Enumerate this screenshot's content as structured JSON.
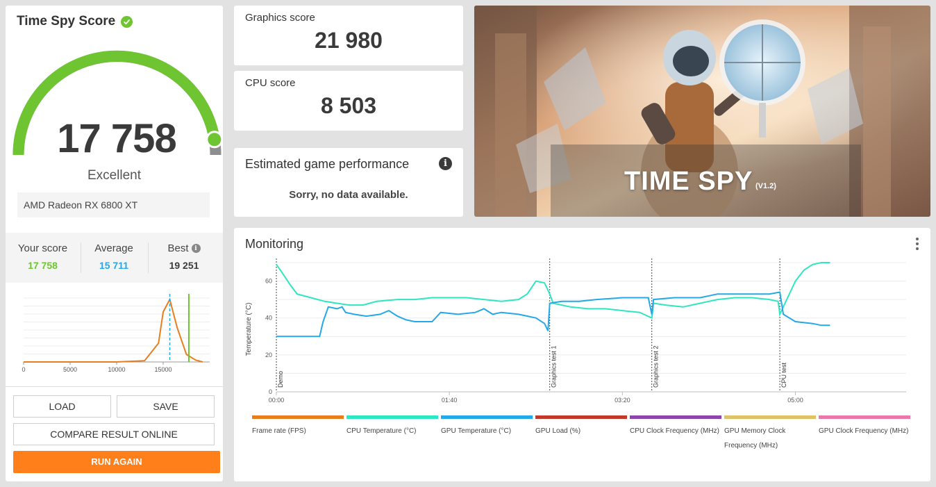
{
  "score_card": {
    "title": "Time Spy Score",
    "score": "17 758",
    "rating": "Excellent",
    "gpu": "AMD Radeon RX 6800 XT",
    "gauge_fraction": 0.95,
    "stats": {
      "your_label": "Your score",
      "your_value": "17 758",
      "avg_label": "Average",
      "avg_value": "15 711",
      "best_label": "Best",
      "best_value": "19 251"
    },
    "dist_ticks": [
      "0",
      "5000",
      "10000",
      "15000"
    ],
    "buttons": {
      "load": "LOAD",
      "save": "SAVE",
      "compare": "COMPARE RESULT ONLINE",
      "run_again": "RUN AGAIN"
    }
  },
  "graphics": {
    "label": "Graphics score",
    "value": "21 980"
  },
  "cpu": {
    "label": "CPU score",
    "value": "8 503"
  },
  "egp": {
    "title": "Estimated game performance",
    "message": "Sorry, no data available."
  },
  "banner": {
    "title": "TIME SPY",
    "version": "(V1.2)"
  },
  "monitoring": {
    "title": "Monitoring",
    "ylabel": "Temperature (°C)",
    "legend": [
      {
        "label": "Frame rate (FPS)",
        "color": "#e87d1e"
      },
      {
        "label": "CPU Temperature (°C)",
        "color": "#2ee6c0"
      },
      {
        "label": "GPU Temperature (°C)",
        "color": "#23a8e8"
      },
      {
        "label": "GPU Load (%)",
        "color": "#c0392b"
      },
      {
        "label": "CPU Clock Frequency (MHz)",
        "color": "#8e44ad"
      },
      {
        "label": "GPU Memory Clock Frequency (MHz)",
        "color": "#e0c266"
      },
      {
        "label": "GPU Clock Frequency (MHz)",
        "color": "#e879a9"
      }
    ]
  },
  "colors": {
    "green": "#6ec531",
    "blue": "#23a8e8",
    "orange": "#ff7f1a",
    "cpu_temp": "#2ee6c0",
    "gpu_temp": "#23a8e8"
  },
  "chart_data": {
    "type": "line",
    "ylabel": "Temperature (°C)",
    "ylim": [
      0,
      70
    ],
    "yticks": [
      0,
      20,
      40,
      60
    ],
    "xlim_seconds": [
      0,
      364
    ],
    "xticks": [
      "00:00",
      "01:40",
      "03:20",
      "05:00"
    ],
    "markers": [
      {
        "label": "Demo",
        "t": 0
      },
      {
        "label": "Graphics test 1",
        "t": 158
      },
      {
        "label": "Graphics test 2",
        "t": 217
      },
      {
        "label": "CPU test",
        "t": 291
      }
    ],
    "series": [
      {
        "name": "CPU Temperature (°C)",
        "points": [
          [
            0,
            69
          ],
          [
            3,
            65
          ],
          [
            8,
            58
          ],
          [
            12,
            53
          ],
          [
            20,
            51
          ],
          [
            28,
            49
          ],
          [
            35,
            48
          ],
          [
            42,
            47
          ],
          [
            50,
            47
          ],
          [
            58,
            49
          ],
          [
            70,
            50
          ],
          [
            80,
            50
          ],
          [
            90,
            51
          ],
          [
            100,
            51
          ],
          [
            110,
            51
          ],
          [
            120,
            50
          ],
          [
            130,
            49
          ],
          [
            140,
            50
          ],
          [
            145,
            53
          ],
          [
            150,
            60
          ],
          [
            155,
            59
          ],
          [
            158,
            53
          ],
          [
            160,
            48
          ],
          [
            165,
            47
          ],
          [
            170,
            46
          ],
          [
            180,
            45
          ],
          [
            190,
            45
          ],
          [
            200,
            44
          ],
          [
            210,
            43
          ],
          [
            217,
            40
          ],
          [
            218,
            48
          ],
          [
            225,
            47
          ],
          [
            235,
            46
          ],
          [
            245,
            48
          ],
          [
            255,
            50
          ],
          [
            265,
            51
          ],
          [
            275,
            51
          ],
          [
            285,
            50
          ],
          [
            290,
            49
          ],
          [
            291,
            42
          ],
          [
            295,
            50
          ],
          [
            300,
            60
          ],
          [
            305,
            66
          ],
          [
            310,
            69
          ],
          [
            315,
            70
          ],
          [
            320,
            70
          ]
        ]
      },
      {
        "name": "GPU Temperature (°C)",
        "points": [
          [
            0,
            30
          ],
          [
            20,
            30
          ],
          [
            25,
            30
          ],
          [
            27,
            38
          ],
          [
            30,
            46
          ],
          [
            35,
            45
          ],
          [
            38,
            46
          ],
          [
            40,
            43
          ],
          [
            45,
            42
          ],
          [
            52,
            41
          ],
          [
            60,
            42
          ],
          [
            65,
            44
          ],
          [
            70,
            41
          ],
          [
            75,
            39
          ],
          [
            80,
            38
          ],
          [
            90,
            38
          ],
          [
            95,
            43
          ],
          [
            105,
            42
          ],
          [
            115,
            43
          ],
          [
            120,
            45
          ],
          [
            125,
            42
          ],
          [
            130,
            43
          ],
          [
            140,
            42
          ],
          [
            150,
            40
          ],
          [
            155,
            37
          ],
          [
            157,
            33
          ],
          [
            158,
            48
          ],
          [
            165,
            49
          ],
          [
            175,
            49
          ],
          [
            185,
            50
          ],
          [
            200,
            51
          ],
          [
            215,
            51
          ],
          [
            217,
            42
          ],
          [
            218,
            50
          ],
          [
            230,
            51
          ],
          [
            245,
            51
          ],
          [
            255,
            53
          ],
          [
            270,
            53
          ],
          [
            285,
            53
          ],
          [
            291,
            54
          ],
          [
            293,
            42
          ],
          [
            300,
            38
          ],
          [
            310,
            37
          ],
          [
            315,
            36
          ],
          [
            320,
            36
          ]
        ]
      }
    ],
    "distribution": {
      "x": [
        0,
        5000,
        10000,
        13000,
        14500,
        15000,
        15711,
        16500,
        17500,
        18500,
        19251
      ],
      "y": [
        0,
        0,
        0,
        0.02,
        0.3,
        0.8,
        1.0,
        0.55,
        0.12,
        0.03,
        0
      ],
      "average": 15711,
      "your_score": 17758
    }
  }
}
